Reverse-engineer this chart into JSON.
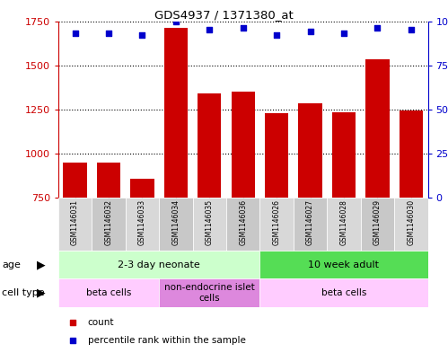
{
  "title": "GDS4937 / 1371380_at",
  "samples": [
    "GSM1146031",
    "GSM1146032",
    "GSM1146033",
    "GSM1146034",
    "GSM1146035",
    "GSM1146036",
    "GSM1146026",
    "GSM1146027",
    "GSM1146028",
    "GSM1146029",
    "GSM1146030"
  ],
  "counts": [
    950,
    950,
    855,
    1710,
    1340,
    1350,
    1230,
    1285,
    1235,
    1535,
    1245
  ],
  "percentiles": [
    93,
    93,
    92,
    100,
    95,
    96,
    92,
    94,
    93,
    96,
    95
  ],
  "ylim_left": [
    750,
    1750
  ],
  "ylim_right": [
    0,
    100
  ],
  "yticks_left": [
    750,
    1000,
    1250,
    1500,
    1750
  ],
  "yticks_right": [
    0,
    25,
    50,
    75,
    100
  ],
  "bar_color": "#cc0000",
  "dot_color": "#0000cc",
  "age_groups": [
    {
      "label": "2-3 day neonate",
      "start": 0,
      "end": 6,
      "color": "#ccffcc"
    },
    {
      "label": "10 week adult",
      "start": 6,
      "end": 11,
      "color": "#55dd55"
    }
  ],
  "cell_type_groups": [
    {
      "label": "beta cells",
      "start": 0,
      "end": 3,
      "color": "#ffccff"
    },
    {
      "label": "non-endocrine islet\ncells",
      "start": 3,
      "end": 6,
      "color": "#dd88dd"
    },
    {
      "label": "beta cells",
      "start": 6,
      "end": 11,
      "color": "#ffccff"
    }
  ],
  "legend_items": [
    {
      "label": "count",
      "color": "#cc0000",
      "marker": "s"
    },
    {
      "label": "percentile rank within the sample",
      "color": "#0000cc",
      "marker": "s"
    }
  ],
  "sample_box_colors": [
    "#d8d8d8",
    "#c8c8c8"
  ],
  "background_color": "#ffffff"
}
